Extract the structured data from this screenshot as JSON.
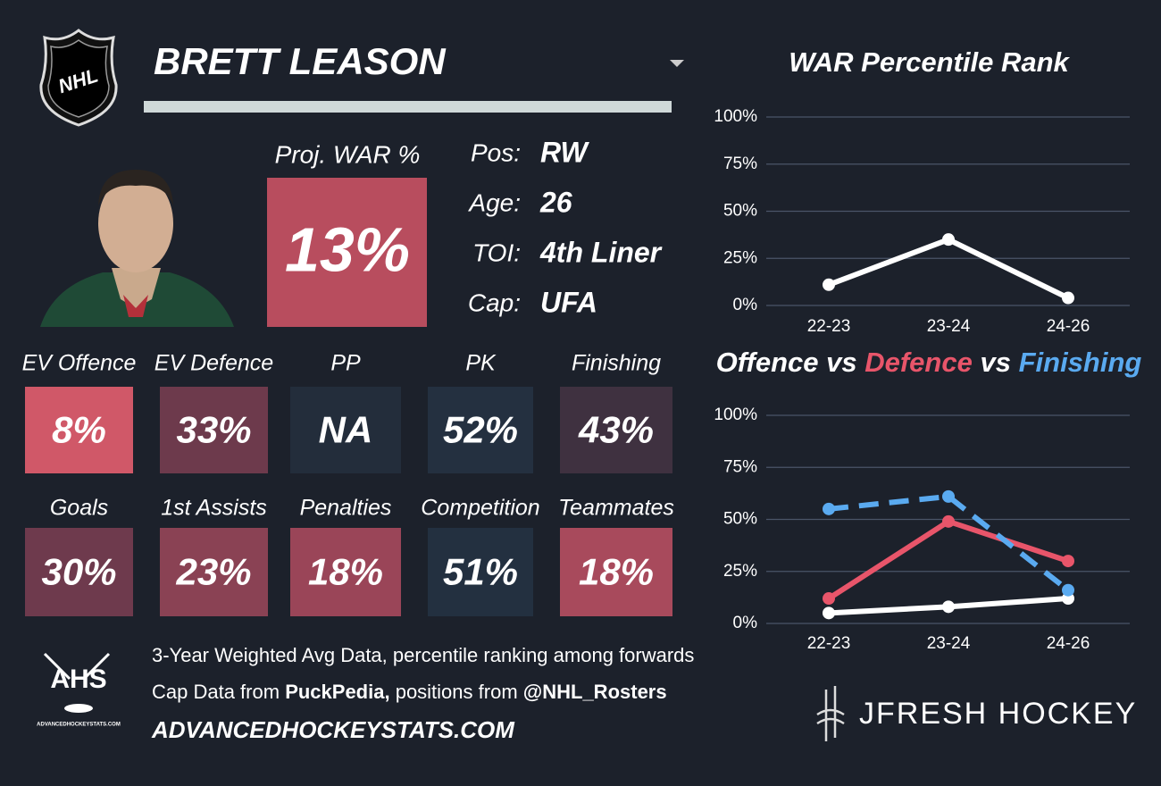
{
  "header": {
    "name": "BRETT LEASON",
    "logo": "NHL"
  },
  "projection": {
    "label": "Proj. WAR %",
    "value": "13%",
    "color": "#b84d5e"
  },
  "info": [
    {
      "label": "Pos:",
      "value": "RW"
    },
    {
      "label": "Age:",
      "value": "26"
    },
    {
      "label": "TOI:",
      "value": "4th Liner"
    },
    {
      "label": "Cap:",
      "value": "UFA"
    }
  ],
  "stats": [
    {
      "label": "EV Offence",
      "value": "8%",
      "color": "#d05868"
    },
    {
      "label": "EV Defence",
      "value": "33%",
      "color": "#6d3a4c"
    },
    {
      "label": "PP",
      "value": "NA",
      "color": "#232d3b"
    },
    {
      "label": "PK",
      "value": "52%",
      "color": "#243040"
    },
    {
      "label": "Finishing",
      "value": "43%",
      "color": "#3f3140"
    },
    {
      "label": "Goals",
      "value": "30%",
      "color": "#6e3a4d"
    },
    {
      "label": "1st Assists",
      "value": "23%",
      "color": "#8a4254"
    },
    {
      "label": "Penalties",
      "value": "18%",
      "color": "#9a4558"
    },
    {
      "label": "Competition",
      "value": "51%",
      "color": "#233040"
    },
    {
      "label": "Teammates",
      "value": "18%",
      "color": "#a84a5c"
    }
  ],
  "chart_data": [
    {
      "type": "line",
      "title": "WAR Percentile Rank",
      "categories": [
        "22-23",
        "23-24",
        "24-26"
      ],
      "series": [
        {
          "color": "#ffffff",
          "values": [
            11,
            35,
            4
          ]
        }
      ],
      "ylim": [
        0,
        100
      ],
      "yticks": [
        {
          "value": 0,
          "label": "0%"
        },
        {
          "value": 25,
          "label": "25%"
        },
        {
          "value": 50,
          "label": "50%"
        },
        {
          "value": 75,
          "label": "75%"
        },
        {
          "value": 100,
          "label": "100%"
        }
      ],
      "grid": true
    },
    {
      "type": "line",
      "title": [
        "Offence",
        "vs",
        "Defence",
        "vs",
        "Finishing"
      ],
      "categories": [
        "22-23",
        "23-24",
        "24-26"
      ],
      "series": [
        {
          "color": "#ffffff",
          "values": [
            5,
            8,
            12
          ]
        },
        {
          "color": "#e8556a",
          "values": [
            12,
            49,
            30
          ]
        },
        {
          "color": "#5aaaf0",
          "values": [
            55,
            61,
            16
          ],
          "dashed": true
        }
      ],
      "ylim": [
        0,
        100
      ],
      "yticks": [
        {
          "value": 0,
          "label": "0%"
        },
        {
          "value": 25,
          "label": "25%"
        },
        {
          "value": 50,
          "label": "50%"
        },
        {
          "value": 75,
          "label": "75%"
        },
        {
          "value": 100,
          "label": "100%"
        }
      ],
      "grid": true
    }
  ],
  "footer": {
    "note": "3-Year Weighted Avg Data, percentile ranking among forwards",
    "credits": [
      "Cap Data from",
      "PuckPedia,",
      "positions from",
      "@NHL_Rosters"
    ],
    "website": "ADVANCEDHOCKEYSTATS.COM",
    "ahs_logo": "AHS",
    "ahs_logo_caption": "ADVANCEDHOCKEYSTATS.COM",
    "brand": "JFRESH HOCKEY"
  }
}
